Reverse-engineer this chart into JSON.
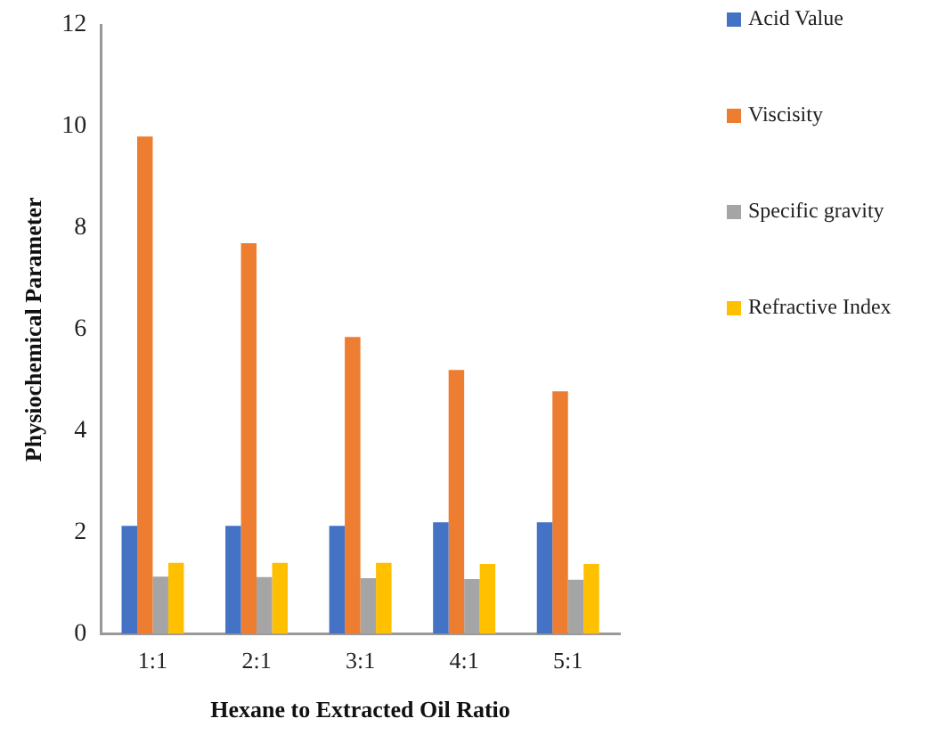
{
  "chart_data": {
    "type": "bar",
    "xlabel": "Hexane to Extracted Oil Ratio",
    "ylabel": "Physiochemical Parameter",
    "categories": [
      "1:1",
      "2:1",
      "3:1",
      "4:1",
      "5:1"
    ],
    "series": [
      {
        "name": "Acid Value",
        "color": "#4472c4",
        "values": [
          2.13,
          2.13,
          2.13,
          2.2,
          2.2
        ]
      },
      {
        "name": "Viscisity",
        "color": "#ed7d31",
        "values": [
          9.8,
          7.7,
          5.85,
          5.2,
          4.78
        ]
      },
      {
        "name": "Specific gravity",
        "color": "#a5a5a5",
        "values": [
          1.13,
          1.12,
          1.1,
          1.08,
          1.07
        ]
      },
      {
        "name": "Refractive Index",
        "color": "#ffc000",
        "values": [
          1.4,
          1.4,
          1.4,
          1.38,
          1.38
        ]
      }
    ],
    "ylim": [
      0,
      12
    ],
    "yticks": [
      0,
      2,
      4,
      6,
      8,
      10,
      12
    ],
    "grid": false,
    "legend": "top right"
  }
}
